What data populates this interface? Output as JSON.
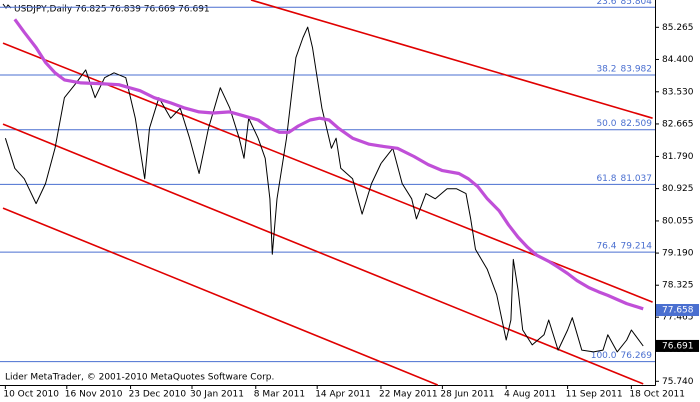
{
  "chart_data": {
    "type": "line",
    "title": "USDJPY,Daily  76.825 76.839 76.669 76.691",
    "footer": "Lider MetaTrader, © 2001-2010 MetaQuotes Software Corp.",
    "xlim": [
      -1,
      275
    ],
    "ylim": [
      75.64,
      86.0
    ],
    "xticks": [
      {
        "value": 0,
        "label": "10 Oct 2010"
      },
      {
        "value": 26,
        "label": "16 Nov 2010"
      },
      {
        "value": 53,
        "label": "23 Dec 2010"
      },
      {
        "value": 79,
        "label": "30 Jan 2011"
      },
      {
        "value": 106,
        "label": "8 Mar 2011"
      },
      {
        "value": 132,
        "label": "14 Apr 2011"
      },
      {
        "value": 159,
        "label": "22 May 2011"
      },
      {
        "value": 185,
        "label": "28 Jun 2011"
      },
      {
        "value": 212,
        "label": "4 Aug 2011"
      },
      {
        "value": 238,
        "label": "11 Sep 2011"
      },
      {
        "value": 265,
        "label": "18 Oct 2011"
      }
    ],
    "yticks": [
      85.265,
      {
        "value": 84.4,
        "label": "84.400"
      },
      {
        "value": 83.53,
        "label": "83.530"
      },
      82.665,
      {
        "value": 81.79,
        "label": "81.790"
      },
      80.925,
      80.055,
      {
        "value": 79.19,
        "label": "79.190"
      },
      78.325,
      77.465,
      76.595,
      {
        "value": 75.74,
        "label": "75.740"
      }
    ],
    "series": [
      {
        "color": "#000000",
        "x": [
          0,
          4,
          8,
          13,
          17,
          21,
          25,
          30,
          34,
          38,
          42,
          46,
          51,
          55,
          59,
          61,
          65,
          70,
          74,
          78,
          82,
          86,
          91,
          95,
          99,
          101,
          103,
          107,
          110,
          112,
          113,
          115,
          119,
          123,
          126,
          128,
          130,
          134,
          138,
          140,
          142,
          147,
          151,
          155,
          159,
          164,
          168,
          172,
          174,
          178,
          182,
          187,
          191,
          195,
          197,
          199,
          204,
          208,
          212,
          214,
          215,
          217,
          219,
          223,
          228,
          230,
          234,
          238,
          240,
          244,
          249,
          253,
          255,
          259,
          263,
          265,
          270
        ],
        "values": [
          82.28,
          81.47,
          81.19,
          80.52,
          81.06,
          82.01,
          83.37,
          83.77,
          84.12,
          83.37,
          83.91,
          84.04,
          83.91,
          82.82,
          81.19,
          82.55,
          83.37,
          82.82,
          83.09,
          82.28,
          81.33,
          82.55,
          83.64,
          83.09,
          82.28,
          81.74,
          82.82,
          82.28,
          81.74,
          80.65,
          79.16,
          80.65,
          82.28,
          84.45,
          84.99,
          85.27,
          84.72,
          83.09,
          82.01,
          82.28,
          81.47,
          81.19,
          80.24,
          81.06,
          81.6,
          82.01,
          81.06,
          80.65,
          80.11,
          80.79,
          80.65,
          80.92,
          80.92,
          80.79,
          80.11,
          79.29,
          78.75,
          78.07,
          76.85,
          77.39,
          79.02,
          78.21,
          77.12,
          76.72,
          76.99,
          77.39,
          76.58,
          77.12,
          77.45,
          76.58,
          76.53,
          76.58,
          76.99,
          76.53,
          76.85,
          77.12,
          76.69
        ]
      },
      {
        "color": "#c04fd8",
        "x": [
          4,
          8,
          13,
          17,
          21,
          25,
          32,
          40,
          48,
          57,
          63,
          70,
          76,
          82,
          88,
          95,
          101,
          107,
          112,
          116,
          120,
          124,
          129,
          133,
          137,
          141,
          147,
          154,
          160,
          166,
          173,
          179,
          185,
          192,
          196,
          200,
          204,
          209,
          213,
          217,
          221,
          225,
          230,
          234,
          238,
          242,
          247,
          251,
          255,
          259,
          263,
          270
        ],
        "values": [
          85.48,
          85.13,
          84.72,
          84.32,
          84.04,
          83.85,
          83.77,
          83.75,
          83.72,
          83.56,
          83.37,
          83.23,
          83.09,
          82.99,
          82.96,
          82.99,
          82.88,
          82.77,
          82.55,
          82.44,
          82.44,
          82.61,
          82.77,
          82.82,
          82.77,
          82.55,
          82.28,
          82.12,
          82.06,
          82.01,
          81.79,
          81.57,
          81.41,
          81.33,
          81.19,
          80.98,
          80.65,
          80.33,
          79.95,
          79.62,
          79.35,
          79.13,
          78.97,
          78.81,
          78.64,
          78.45,
          78.26,
          78.15,
          78.05,
          77.94,
          77.83,
          77.69
        ]
      }
    ],
    "trend_lines": [
      {
        "color": "#e00000",
        "x": [
          104,
          274
        ],
        "values": [
          86.0,
          82.82
        ]
      },
      {
        "color": "#e00000",
        "x": [
          -1,
          274
        ],
        "values": [
          84.84,
          77.87
        ]
      },
      {
        "color": "#e00000",
        "x": [
          -1,
          270
        ],
        "values": [
          82.66,
          75.67
        ]
      },
      {
        "color": "#e00000",
        "x": [
          -1,
          183
        ],
        "values": [
          80.4,
          75.64
        ]
      }
    ],
    "fib_color": "#4a6fd0",
    "fib_levels": [
      {
        "ratio": "23.6",
        "value": 85.804
      },
      {
        "ratio": "38.2",
        "value": 83.982
      },
      {
        "ratio": "50.0",
        "value": 82.509
      },
      {
        "ratio": "61.8",
        "value": 81.037
      },
      {
        "ratio": "76.4",
        "value": 79.214
      },
      {
        "ratio": "100.0",
        "value": 76.269
      }
    ],
    "ma_last": {
      "value": 77.658,
      "color": "#4a6fd0"
    },
    "bid": {
      "value": 76.691,
      "color": "#000000"
    }
  }
}
